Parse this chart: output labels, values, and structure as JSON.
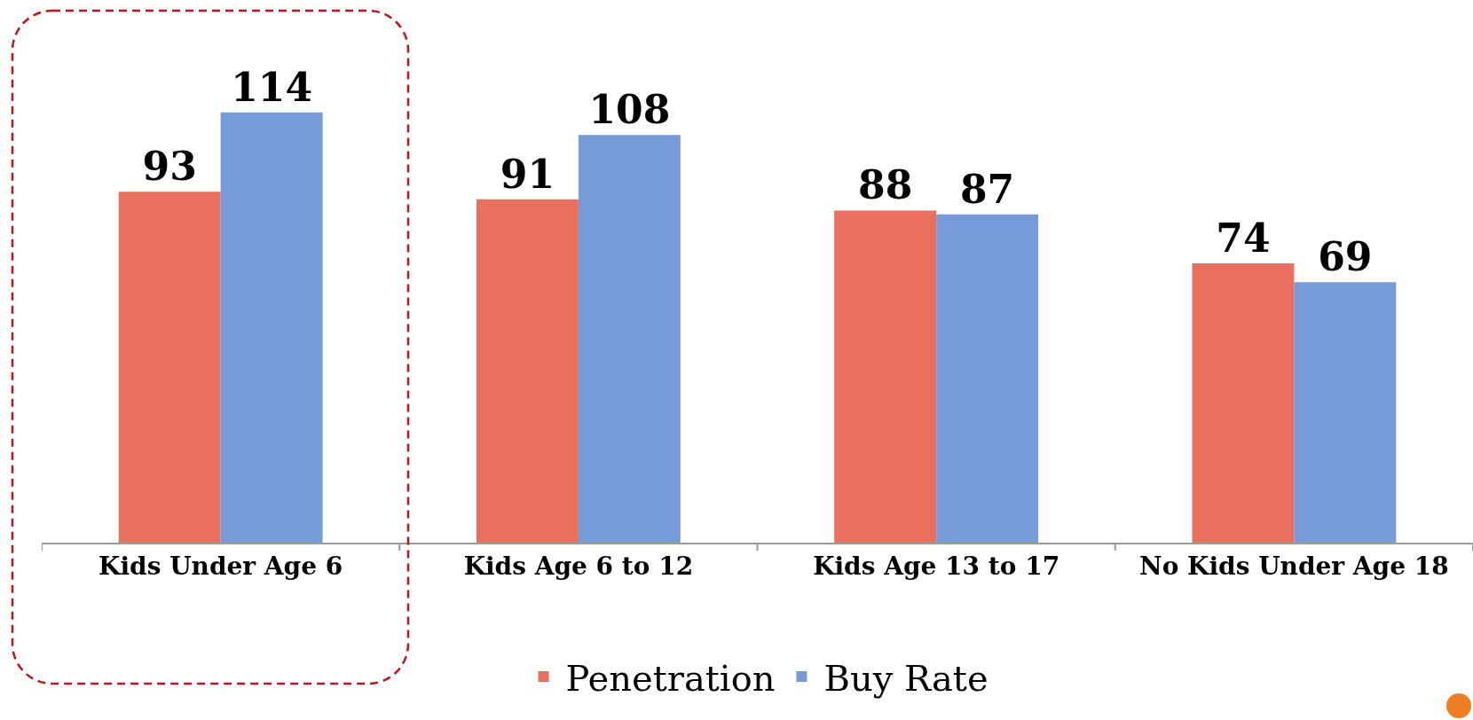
{
  "chart_data": {
    "type": "bar",
    "categories": [
      "Kids Under Age 6",
      "Kids Age 6 to 12",
      "Kids Age 13 to 17",
      "No Kids Under Age 18"
    ],
    "series": [
      {
        "name": "Penetration",
        "color": "#e9705c",
        "values": [
          93,
          91,
          88,
          74
        ]
      },
      {
        "name": "Buy Rate",
        "color": "#779bd8",
        "values": [
          114,
          108,
          87,
          69
        ]
      }
    ],
    "data_labels": true,
    "legend": "bottom"
  }
}
